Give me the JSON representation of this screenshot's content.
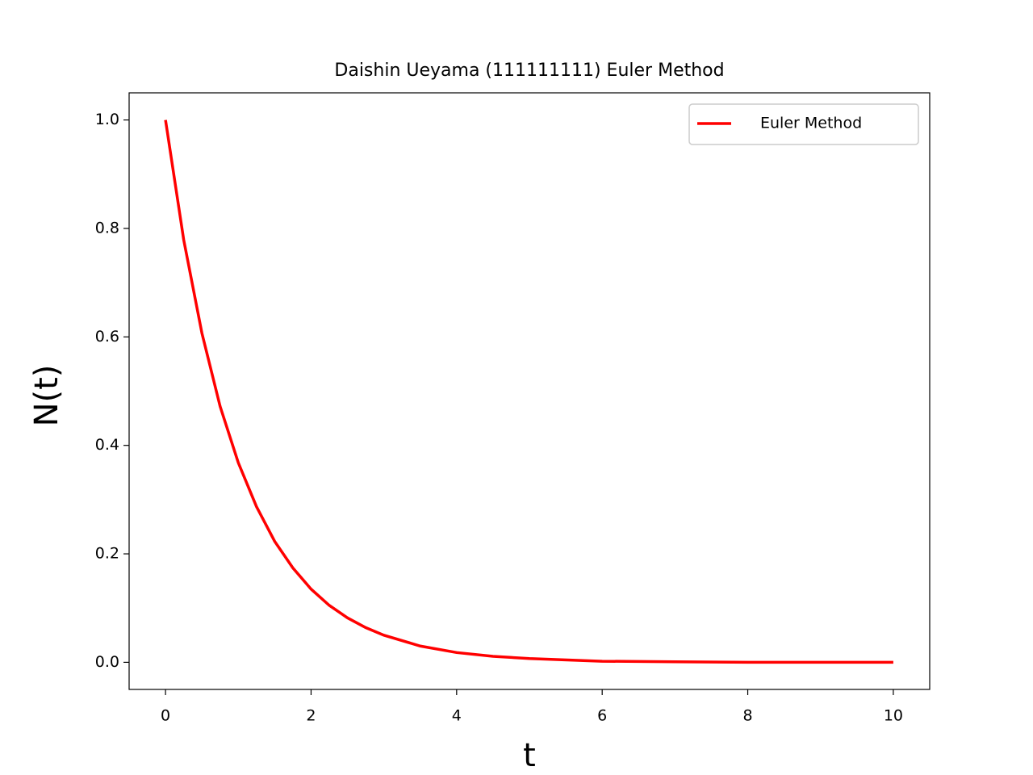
{
  "chart_data": {
    "type": "line",
    "title": "Daishin Ueyama (111111111) Euler Method",
    "xlabel": "t",
    "ylabel": "N(t)",
    "x": [
      0,
      0.25,
      0.5,
      0.75,
      1,
      1.25,
      1.5,
      1.75,
      2,
      2.25,
      2.5,
      2.75,
      3,
      3.5,
      4,
      4.5,
      5,
      6,
      7,
      8,
      9,
      10
    ],
    "series": [
      {
        "name": "Euler Method",
        "color": "#ff0000",
        "values": [
          1,
          0.779,
          0.607,
          0.472,
          0.368,
          0.287,
          0.223,
          0.174,
          0.135,
          0.105,
          0.082,
          0.064,
          0.05,
          0.03,
          0.018,
          0.011,
          0.007,
          0.002,
          0.001,
          0,
          0,
          0
        ]
      }
    ],
    "xlim": [
      -0.5,
      10.5
    ],
    "ylim": [
      -0.05,
      1.05
    ],
    "xticks": [
      0,
      2,
      4,
      6,
      8,
      10
    ],
    "yticks": [
      {
        "value": 0,
        "label": "0.0"
      },
      0.2,
      0.4,
      0.6,
      0.8,
      {
        "value": 1,
        "label": "1.0"
      }
    ],
    "legend": "upper right",
    "grid": false
  }
}
